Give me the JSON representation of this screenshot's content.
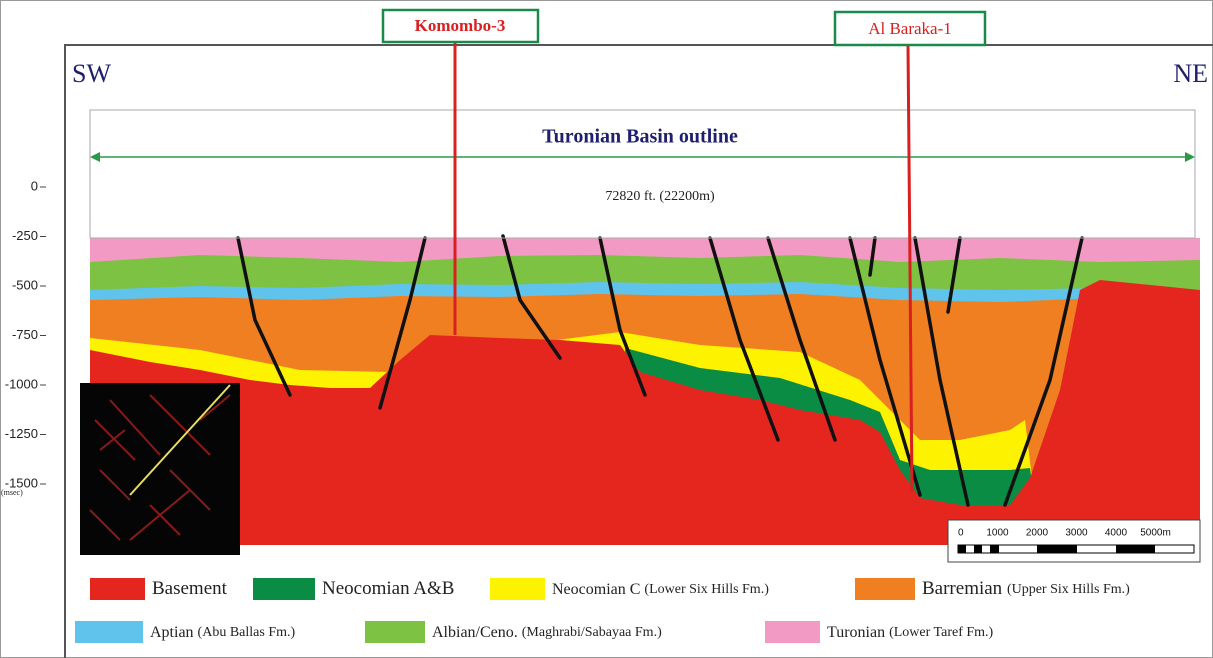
{
  "section": {
    "left": "SW",
    "right": "NE",
    "title": "Turonian Basin outline",
    "width_label": "72820 ft. (22200m)"
  },
  "wells": [
    {
      "label": "Komombo-3"
    },
    {
      "label": "Al Baraka-1"
    }
  ],
  "depth_axis": {
    "ticks": [
      0,
      -250,
      -500,
      -750,
      -1000,
      -1250,
      -1500
    ],
    "unit": "(msec)"
  },
  "scale_bar": {
    "labels": [
      "0",
      "1000",
      "2000",
      "3000",
      "4000",
      "5000m"
    ]
  },
  "legend": [
    {
      "name": "Basement",
      "color": "#e4261f"
    },
    {
      "name": "Neocomian A&B",
      "color": "#0b8c45"
    },
    {
      "name": "Neocomian C",
      "note": "(Lower Six Hills Fm.)",
      "color": "#fdf200"
    },
    {
      "name": "Barremian",
      "note": "(Upper Six Hills Fm.)",
      "color": "#f07f22"
    },
    {
      "name": "Aptian",
      "note": "(Abu Ballas Fm.)",
      "color": "#5fc3ec"
    },
    {
      "name": "Albian/Ceno.",
      "note": "(Maghrabi/Sabayaa Fm.)",
      "color": "#7dc242"
    },
    {
      "name": "Turonian",
      "note": "(Lower Taref Fm.)",
      "color": "#f39ac4"
    }
  ]
}
